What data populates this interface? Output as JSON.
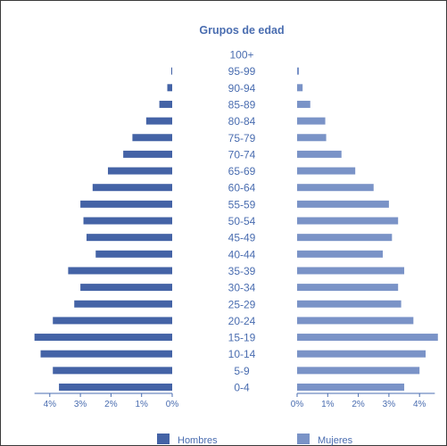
{
  "chart_data": {
    "type": "bar",
    "orientation": "horizontal-population-pyramid",
    "title": "Grupos de edad",
    "categories": [
      "0-4",
      "5-9",
      "10-14",
      "15-19",
      "20-24",
      "25-29",
      "30-34",
      "35-39",
      "40-44",
      "45-49",
      "50-54",
      "55-59",
      "60-64",
      "65-69",
      "70-74",
      "75-79",
      "80-84",
      "85-89",
      "90-94",
      "95-99",
      "100+"
    ],
    "series": [
      {
        "name": "Hombres",
        "color": "#4463a6",
        "side": "left",
        "values": [
          3.7,
          3.9,
          4.3,
          4.5,
          3.9,
          3.2,
          3.0,
          3.4,
          2.5,
          2.8,
          2.9,
          3.0,
          2.6,
          2.1,
          1.6,
          1.3,
          0.85,
          0.42,
          0.16,
          0.03,
          0.0
        ]
      },
      {
        "name": "Mujeres",
        "color": "#7a93c7",
        "side": "right",
        "values": [
          3.5,
          4.0,
          4.2,
          4.6,
          3.8,
          3.4,
          3.3,
          3.5,
          2.8,
          3.1,
          3.3,
          3.0,
          2.5,
          1.9,
          1.45,
          0.95,
          0.92,
          0.43,
          0.18,
          0.06,
          0.0
        ]
      }
    ],
    "left_axis": {
      "ticks": [
        "4%",
        "3%",
        "2%",
        "1%",
        "0%"
      ],
      "tick_values": [
        4,
        3,
        2,
        1,
        0
      ]
    },
    "right_axis": {
      "ticks": [
        "0%",
        "1%",
        "2%",
        "3%",
        "4%"
      ],
      "tick_values": [
        0,
        1,
        2,
        3,
        4
      ]
    },
    "xlim": [
      0,
      4.5
    ],
    "grid": false,
    "legend": "bottom"
  }
}
